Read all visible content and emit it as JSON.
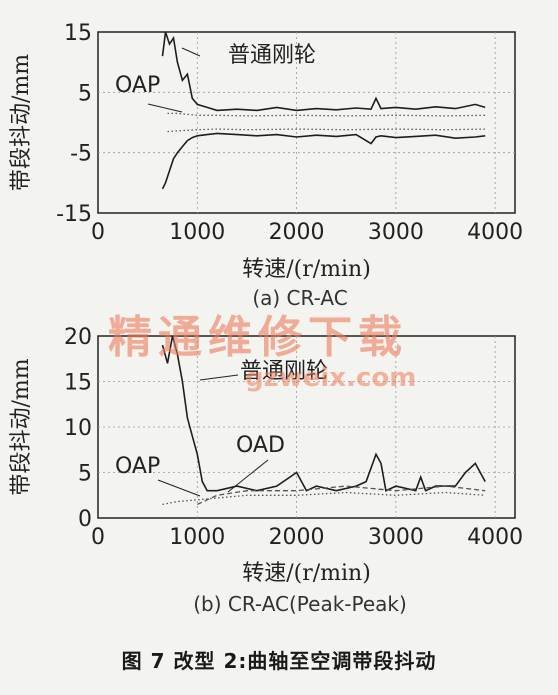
{
  "figure_caption": "图 7   改型 2:曲轴至空调带段抖动",
  "watermark": {
    "text": "精通维修下载",
    "url": "gzweix.com"
  },
  "chart_data": [
    {
      "type": "line",
      "subcaption": "(a) CR-AC",
      "xlabel": "转速/(r/min)",
      "ylabel": "带段抖动/mm",
      "xlim": [
        0,
        4200
      ],
      "ylim": [
        -15,
        15
      ],
      "xticks": [
        0,
        1000,
        2000,
        3000,
        4000
      ],
      "yticks": [
        -15,
        -5,
        5,
        15
      ],
      "grid": true,
      "annotations": [
        {
          "text": "普通刚轮",
          "target": "普通刚轮"
        },
        {
          "text": "OAP",
          "target": "OAP"
        }
      ],
      "series": [
        {
          "name": "普通刚轮",
          "style": "solid",
          "envelope": true,
          "x": [
            650,
            680,
            720,
            760,
            800,
            850,
            900,
            950,
            1000,
            1100,
            1200,
            1400,
            1600,
            1800,
            2000,
            2200,
            2400,
            2600,
            2750,
            2800,
            2850,
            3000,
            3200,
            3400,
            3600,
            3800,
            3900
          ],
          "upper": [
            11,
            15,
            13,
            14,
            10,
            7,
            8,
            4,
            3,
            2.5,
            2,
            2.2,
            2,
            2.5,
            2,
            2.3,
            2.1,
            2.4,
            2.2,
            4,
            2.3,
            2.5,
            2.2,
            2.6,
            2.3,
            3,
            2.5
          ],
          "lower": [
            -11,
            -10,
            -8,
            -6,
            -5,
            -4,
            -3,
            -2.5,
            -2.2,
            -2,
            -1.8,
            -2,
            -2.2,
            -2,
            -2.4,
            -2.1,
            -2.3,
            -2,
            -3.5,
            -2.4,
            -2.2,
            -2.5,
            -2.3,
            -2.1,
            -2.6,
            -2.4,
            -2.2
          ]
        },
        {
          "name": "OAP",
          "style": "dotted",
          "envelope": true,
          "x": [
            700,
            800,
            1000,
            1200,
            1500,
            2000,
            2500,
            3000,
            3500,
            3900
          ],
          "upper": [
            1.5,
            1.5,
            1.2,
            1.2,
            1.1,
            1.2,
            1.1,
            1.2,
            1.1,
            1.2
          ],
          "lower": [
            -1.5,
            -1.4,
            -1.2,
            -1.1,
            -1.2,
            -1.1,
            -1.2,
            -1.1,
            -1.2,
            -1.1
          ]
        }
      ]
    },
    {
      "type": "line",
      "subcaption": "(b) CR-AC(Peak-Peak)",
      "xlabel": "转速/(r/min)",
      "ylabel": "带段抖动/mm",
      "xlim": [
        0,
        4200
      ],
      "ylim": [
        0,
        20
      ],
      "xticks": [
        0,
        1000,
        2000,
        3000,
        4000
      ],
      "yticks": [
        0,
        5,
        10,
        15,
        20
      ],
      "grid": true,
      "annotations": [
        {
          "text": "普通刚轮",
          "target": "普通刚轮"
        },
        {
          "text": "OAP",
          "target": "OAP"
        },
        {
          "text": "OAD",
          "target": "OAD"
        }
      ],
      "series": [
        {
          "name": "普通刚轮",
          "style": "solid",
          "x": [
            650,
            700,
            750,
            800,
            850,
            900,
            950,
            1000,
            1050,
            1100,
            1200,
            1400,
            1600,
            1800,
            2000,
            2100,
            2200,
            2400,
            2600,
            2700,
            2800,
            2850,
            2900,
            3000,
            3200,
            3250,
            3300,
            3400,
            3600,
            3700,
            3800,
            3900
          ],
          "y": [
            19,
            17,
            20,
            18,
            15,
            11,
            9,
            7,
            4,
            3,
            3,
            3.5,
            3,
            3.5,
            5,
            3,
            3.5,
            3,
            3.5,
            4,
            7,
            6,
            3,
            3.5,
            3,
            4.5,
            3,
            3.5,
            3.5,
            5,
            6,
            4
          ]
        },
        {
          "name": "OAP",
          "style": "dotted",
          "x": [
            650,
            800,
            1000,
            1200,
            1500,
            2000,
            2500,
            3000,
            3500,
            3900
          ],
          "y": [
            1.5,
            1.8,
            2,
            2.2,
            2.5,
            2.5,
            2.8,
            2.5,
            2.8,
            2.5
          ]
        },
        {
          "name": "OAD",
          "style": "dashed",
          "x": [
            1000,
            1200,
            1500,
            2000,
            2500,
            3000,
            3500,
            3900
          ],
          "y": [
            1.5,
            2.5,
            3,
            3,
            3.5,
            3,
            3.5,
            3
          ]
        }
      ]
    }
  ]
}
